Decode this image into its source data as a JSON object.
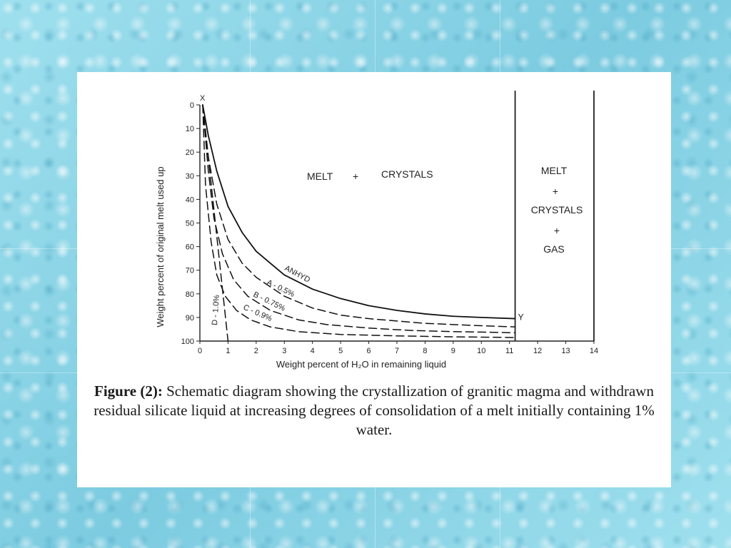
{
  "chart_data": {
    "type": "line",
    "xlabel": "Weight percent of H₂O in remaining liquid",
    "ylabel": "Weight percent of original melt used up",
    "xlim": [
      0,
      14
    ],
    "ylim": [
      0,
      100
    ],
    "y_inverted": true,
    "x_ticks": [
      0,
      1,
      2,
      3,
      4,
      5,
      6,
      7,
      8,
      9,
      10,
      11,
      12,
      13,
      14
    ],
    "x_tick_labels": [
      "0",
      "1",
      "2",
      "3",
      "4",
      "5",
      "6",
      "7",
      "8",
      "9",
      "10",
      "11",
      "12",
      "13",
      "14"
    ],
    "y_ticks": [
      0,
      10,
      20,
      30,
      40,
      50,
      60,
      70,
      80,
      90,
      100
    ],
    "y_tick_labels": [
      "0",
      "10",
      "20",
      "30",
      "40",
      "50",
      "60",
      "70",
      "80",
      "90",
      "100"
    ],
    "point_labels": {
      "start": "X",
      "end": "Y"
    },
    "regions": {
      "left": {
        "line1": "MELT",
        "plus": "+",
        "line2": "CRYSTALS"
      },
      "right": {
        "line1": "MELT",
        "plus1": "+",
        "line2": "CRYSTALS",
        "plus2": "+",
        "line3": "GAS"
      }
    },
    "boundaries_x": [
      11.2,
      14
    ],
    "series": [
      {
        "name": "ANHYD",
        "style": "solid",
        "x": [
          0.1,
          0.3,
          0.6,
          1.0,
          1.5,
          2.0,
          3.0,
          4.0,
          5.0,
          6.0,
          7.0,
          8.0,
          9.0,
          10.0,
          11.2
        ],
        "y": [
          0,
          13,
          28,
          43,
          54,
          62,
          72,
          78,
          82,
          85,
          87,
          88.5,
          89.5,
          90,
          90.5
        ]
      },
      {
        "name": "A - 0.5%",
        "style": "dashed",
        "x": [
          0.1,
          0.3,
          0.6,
          1.0,
          1.5,
          2.0,
          3.0,
          4.0,
          5.0,
          6.0,
          7.0,
          8.0,
          9.0,
          10.0,
          11.2
        ],
        "y": [
          0,
          22,
          42,
          57,
          67,
          73,
          81,
          86,
          89,
          90.5,
          91.5,
          92.5,
          93,
          93.5,
          94
        ]
      },
      {
        "name": "B - 0.75%",
        "style": "dashed",
        "x": [
          0.1,
          0.3,
          0.5,
          0.8,
          1.2,
          1.7,
          2.5,
          3.5,
          4.5,
          6.0,
          7.5,
          9.0,
          10.0,
          11.2
        ],
        "y": [
          0,
          28,
          48,
          63,
          74,
          81,
          87,
          91,
          93,
          94.5,
          95.5,
          96,
          96.2,
          96.5
        ]
      },
      {
        "name": "C - 0.9%",
        "style": "dashed",
        "x": [
          0.1,
          0.2,
          0.4,
          0.6,
          0.9,
          1.3,
          1.8,
          2.5,
          3.5,
          5.0,
          7.0,
          9.0,
          11.2
        ],
        "y": [
          0,
          34,
          58,
          72,
          81,
          87,
          91,
          94,
          96,
          97.2,
          97.8,
          98.2,
          98.5
        ]
      },
      {
        "name": "D - 1.0%",
        "style": "dashed",
        "x": [
          0.1,
          1.0
        ],
        "y": [
          0,
          100
        ]
      }
    ],
    "label_text": {
      "anhyd": "ANHYD",
      "a": "A - 0.5%",
      "b": "B - 0.75%",
      "c": "C - 0.9%",
      "d": "D - 1.0%"
    }
  },
  "caption": {
    "lead": "Figure (2):",
    "text": " Schematic diagram showing the crystallization of granitic magma and withdrawn residual silicate liquid at increasing degrees of consolidation of a melt initially containing 1% water."
  }
}
